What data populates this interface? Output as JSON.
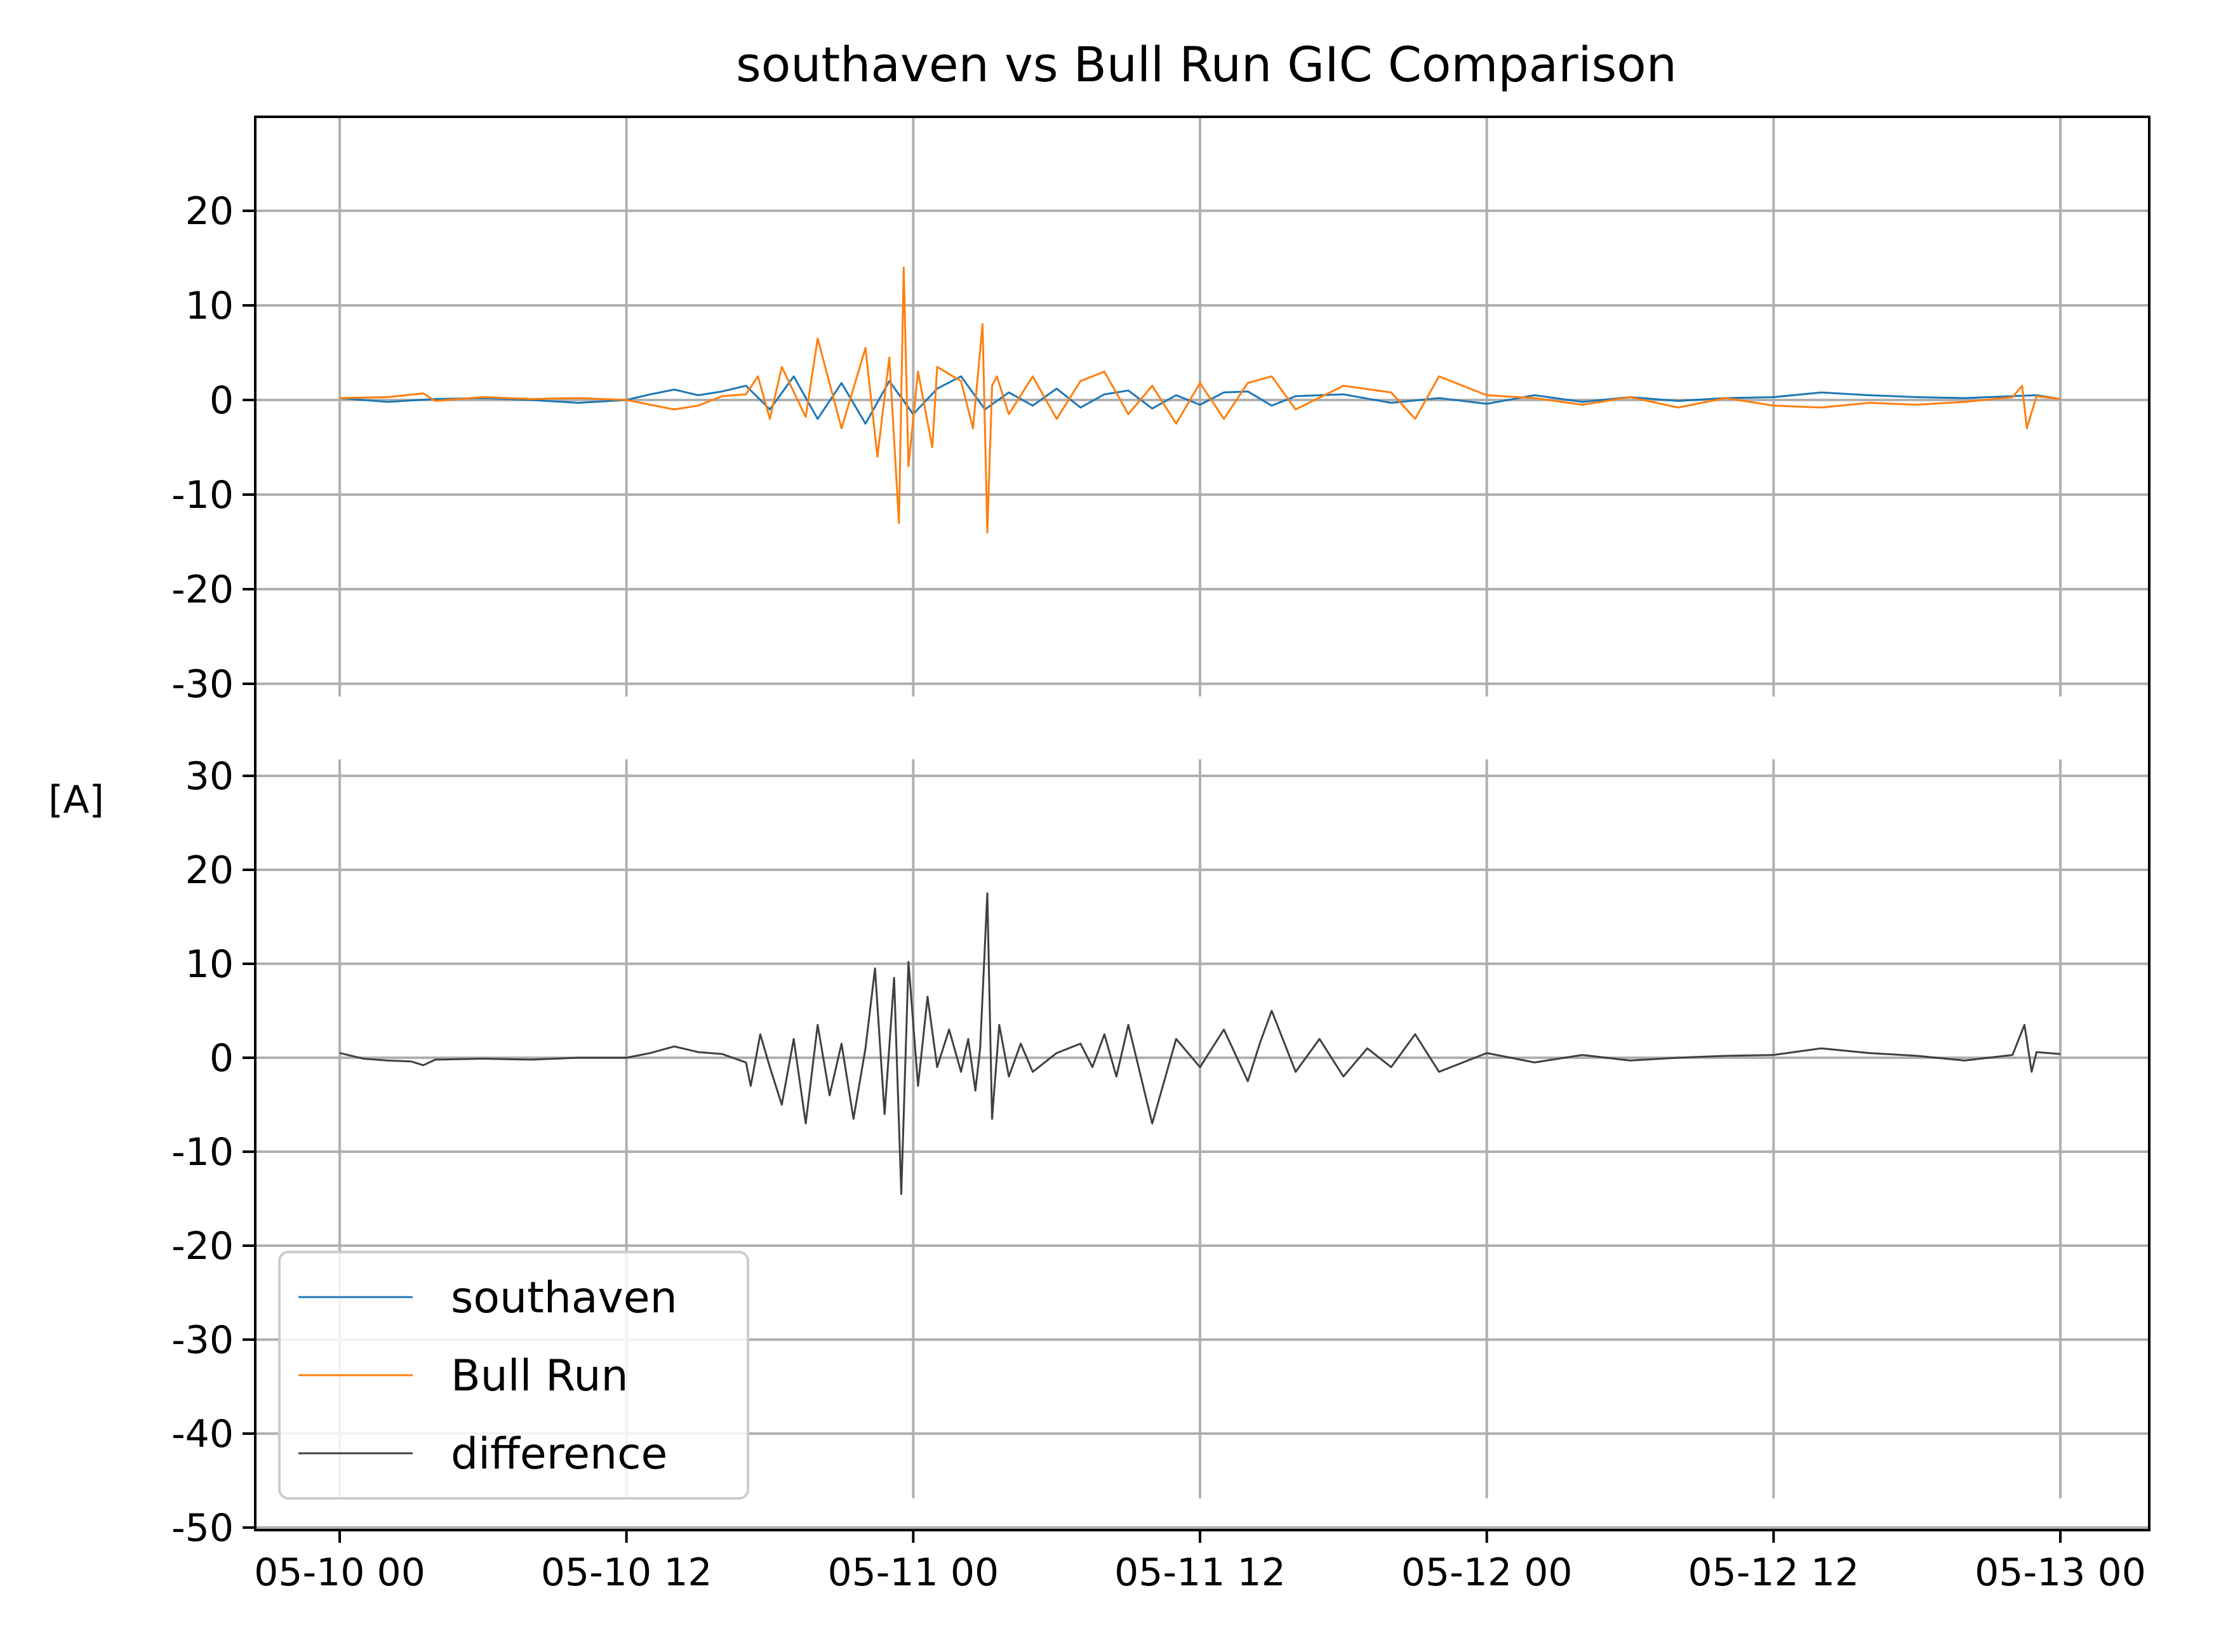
{
  "chart_data": {
    "type": "line",
    "title": "southaven vs Bull Run GIC Comparison",
    "ylabel": "[A]",
    "xlabel": "",
    "x_range": [
      "05-10 00",
      "05-13 00"
    ],
    "x_ticks": [
      "05-10 00",
      "05-10 12",
      "05-11 00",
      "05-11 12",
      "05-12 00",
      "05-12 12",
      "05-13 00"
    ],
    "grid": true,
    "legend_position": "lower-left",
    "panels": [
      {
        "name": "top",
        "ylim": [
          -30,
          30
        ],
        "y_ticks": [
          "20",
          "10",
          "0",
          "-10",
          "-20",
          "-30"
        ],
        "y_tick_values": [
          20,
          10,
          0,
          -10,
          -20,
          -30
        ],
        "series": [
          {
            "name": "southaven",
            "color": "#1f77b4",
            "x_hours": [
              0,
              2,
              4,
              6,
              8,
              10,
              12,
              13,
              14,
              15,
              16,
              17,
              18,
              19,
              20,
              21,
              22,
              23,
              24,
              25,
              26,
              27,
              28,
              29,
              30,
              31,
              32,
              33,
              34,
              35,
              36,
              37,
              38,
              39,
              40,
              42,
              44,
              46,
              48,
              50,
              52,
              54,
              56,
              58,
              60,
              62,
              64,
              66,
              68,
              70,
              71,
              72
            ],
            "values": [
              0.2,
              -0.2,
              0.1,
              0.2,
              0,
              -0.3,
              0,
              0.6,
              1.1,
              0.5,
              0.9,
              1.5,
              -1.0,
              2.5,
              -2.0,
              1.8,
              -2.5,
              2.0,
              -1.5,
              1.2,
              2.5,
              -1.0,
              0.8,
              -0.6,
              1.2,
              -0.8,
              0.6,
              1.0,
              -0.9,
              0.5,
              -0.5,
              0.8,
              0.9,
              -0.6,
              0.4,
              0.6,
              -0.3,
              0.2,
              -0.4,
              0.5,
              -0.2,
              0.3,
              -0.1,
              0.2,
              0.3,
              0.8,
              0.5,
              0.3,
              0.2,
              0.4,
              0.5,
              0.1
            ]
          },
          {
            "name": "Bull Run",
            "color": "#ff7f0e",
            "x_hours": [
              0,
              2,
              3.5,
              4,
              6,
              8,
              10,
              12,
              13,
              14,
              15,
              16,
              17,
              17.5,
              18,
              18.5,
              19.5,
              20,
              21,
              22,
              22.5,
              23,
              23.4,
              23.6,
              23.8,
              24.2,
              24.8,
              25,
              26,
              26.5,
              26.9,
              27.1,
              27.3,
              27.5,
              28,
              29,
              30,
              31,
              32,
              33,
              34,
              35,
              36,
              37,
              38,
              39,
              40,
              42,
              44,
              45,
              46,
              48,
              50,
              52,
              54,
              56,
              58,
              60,
              62,
              64,
              66,
              68,
              70,
              70.4,
              70.6,
              71,
              72
            ],
            "values": [
              0.2,
              0.3,
              0.7,
              -0.1,
              0.3,
              0.1,
              0.2,
              0,
              -0.5,
              -1.0,
              -0.6,
              0.4,
              0.6,
              2.5,
              -2.0,
              3.5,
              -1.8,
              6.5,
              -3.0,
              5.5,
              -6.0,
              4.5,
              -13.0,
              14.0,
              -7.0,
              3.0,
              -5.0,
              3.5,
              2.0,
              -3.0,
              8.0,
              -14.0,
              1.5,
              2.5,
              -1.5,
              2.5,
              -2.0,
              2.0,
              3.0,
              -1.5,
              1.5,
              -2.5,
              1.8,
              -2.0,
              1.8,
              2.5,
              -1.0,
              1.5,
              0.8,
              -2.0,
              2.5,
              0.5,
              0.2,
              -0.5,
              0.3,
              -0.8,
              0.2,
              -0.6,
              -0.8,
              -0.3,
              -0.5,
              -0.2,
              0.3,
              1.5,
              -3.0,
              0.4,
              0.1
            ]
          }
        ]
      },
      {
        "name": "bottom",
        "ylim": [
          -50,
          32
        ],
        "y_ticks": [
          "30",
          "20",
          "10",
          "0",
          "-10",
          "-20",
          "-30",
          "-40",
          "-50"
        ],
        "y_tick_values": [
          30,
          20,
          10,
          0,
          -10,
          -20,
          -30,
          -40,
          -50
        ],
        "series": [
          {
            "name": "difference",
            "color": "#404040",
            "x_hours": [
              0,
              1,
              2,
              3,
              3.5,
              4,
              6,
              8,
              10,
              12,
              13,
              14,
              15,
              16,
              17,
              17.2,
              17.6,
              18,
              18.5,
              19,
              19.5,
              20,
              20.5,
              21,
              21.5,
              22,
              22.4,
              22.8,
              23.2,
              23.5,
              23.8,
              24.2,
              24.6,
              25,
              25.5,
              26,
              26.3,
              26.6,
              26.8,
              27.1,
              27.3,
              27.6,
              28,
              28.5,
              29,
              30,
              31,
              31.5,
              32,
              32.5,
              33,
              34,
              35,
              36,
              37,
              38,
              38.5,
              39,
              40,
              41,
              42,
              43,
              44,
              45,
              46,
              48,
              50,
              52,
              54,
              56,
              58,
              60,
              62,
              64,
              66,
              68,
              70,
              70.5,
              70.8,
              71,
              72
            ],
            "values": [
              0.5,
              -0.1,
              -0.3,
              -0.4,
              -0.8,
              -0.2,
              -0.1,
              -0.2,
              0,
              0,
              0.5,
              1.2,
              0.6,
              0.4,
              -0.5,
              -3.0,
              2.5,
              -1.0,
              -5.0,
              2.0,
              -7.0,
              3.5,
              -4.0,
              1.5,
              -6.5,
              1.0,
              9.5,
              -6.0,
              8.5,
              -14.5,
              10.2,
              -3.0,
              6.5,
              -1.0,
              3.0,
              -1.5,
              2.0,
              -3.5,
              1.0,
              17.5,
              -6.5,
              3.5,
              -2.0,
              1.5,
              -1.5,
              0.5,
              1.5,
              -1.0,
              2.5,
              -2.0,
              3.5,
              -7.0,
              2.0,
              -1.0,
              3.0,
              -2.5,
              1.5,
              5.0,
              -1.5,
              2.0,
              -2.0,
              1.0,
              -1.0,
              2.5,
              -1.5,
              0.5,
              -0.5,
              0.3,
              -0.3,
              0,
              0.2,
              0.3,
              1.0,
              0.5,
              0.2,
              -0.3,
              0.3,
              3.5,
              -1.5,
              0.6,
              0.4
            ]
          }
        ]
      }
    ],
    "legend": [
      "southaven",
      "Bull Run",
      "difference"
    ]
  }
}
